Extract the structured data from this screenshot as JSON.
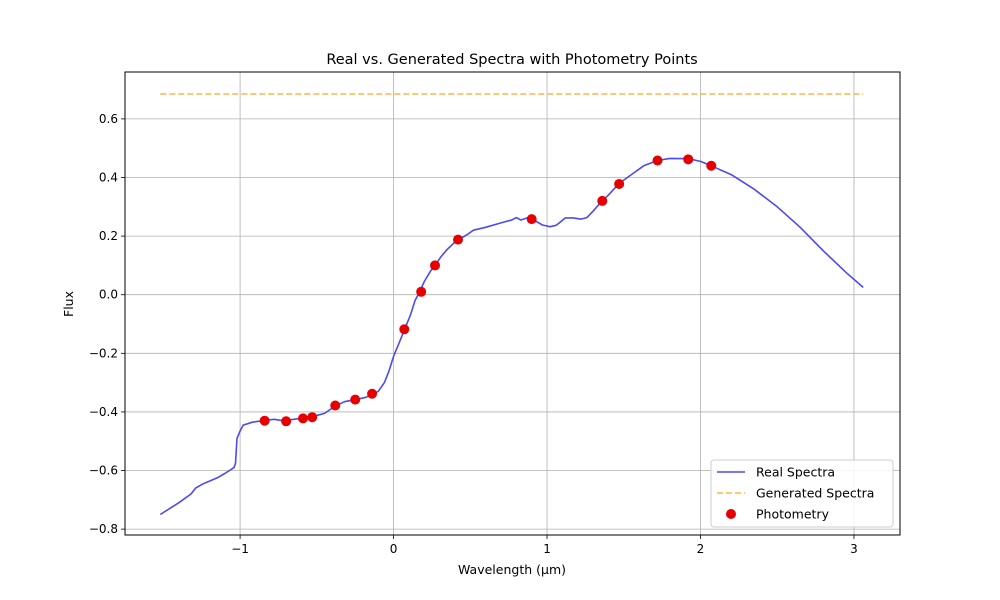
{
  "chart_data": {
    "type": "line",
    "title": "Real vs. Generated Spectra with Photometry Points",
    "xlabel": "Wavelength (µm)",
    "ylabel": "Flux",
    "xlim": [
      -1.75,
      3.3
    ],
    "ylim": [
      -0.82,
      0.76
    ],
    "x_ticks": [
      -1,
      0,
      1,
      2,
      3
    ],
    "x_tick_labels": [
      "−1",
      "0",
      "1",
      "2",
      "3"
    ],
    "y_ticks": [
      -0.8,
      -0.6,
      -0.4,
      -0.2,
      0.0,
      0.2,
      0.4,
      0.6
    ],
    "y_tick_labels": [
      "−0.8",
      "−0.6",
      "−0.4",
      "−0.2",
      "0.0",
      "0.2",
      "0.4",
      "0.6"
    ],
    "grid": true,
    "legend_position": "lower-right",
    "series": [
      {
        "name": "Real Spectra",
        "kind": "line",
        "color": "#4b4bf0",
        "points": [
          [
            -1.52,
            -0.75
          ],
          [
            -1.4,
            -0.71
          ],
          [
            -1.32,
            -0.68
          ],
          [
            -1.29,
            -0.66
          ],
          [
            -1.24,
            -0.645
          ],
          [
            -1.15,
            -0.625
          ],
          [
            -1.1,
            -0.61
          ],
          [
            -1.04,
            -0.59
          ],
          [
            -1.03,
            -0.575
          ],
          [
            -1.02,
            -0.49
          ],
          [
            -1.0,
            -0.465
          ],
          [
            -0.98,
            -0.445
          ],
          [
            -0.92,
            -0.435
          ],
          [
            -0.85,
            -0.43
          ],
          [
            -0.78,
            -0.425
          ],
          [
            -0.72,
            -0.43
          ],
          [
            -0.65,
            -0.425
          ],
          [
            -0.58,
            -0.42
          ],
          [
            -0.52,
            -0.415
          ],
          [
            -0.45,
            -0.405
          ],
          [
            -0.38,
            -0.38
          ],
          [
            -0.32,
            -0.365
          ],
          [
            -0.27,
            -0.36
          ],
          [
            -0.22,
            -0.355
          ],
          [
            -0.18,
            -0.35
          ],
          [
            -0.14,
            -0.34
          ],
          [
            -0.1,
            -0.33
          ],
          [
            -0.06,
            -0.3
          ],
          [
            -0.03,
            -0.26
          ],
          [
            0.0,
            -0.21
          ],
          [
            0.04,
            -0.16
          ],
          [
            0.07,
            -0.12
          ],
          [
            0.11,
            -0.07
          ],
          [
            0.14,
            -0.02
          ],
          [
            0.17,
            0.01
          ],
          [
            0.2,
            0.045
          ],
          [
            0.24,
            0.08
          ],
          [
            0.27,
            0.1
          ],
          [
            0.31,
            0.13
          ],
          [
            0.35,
            0.155
          ],
          [
            0.4,
            0.18
          ],
          [
            0.43,
            0.19
          ],
          [
            0.48,
            0.205
          ],
          [
            0.52,
            0.22
          ],
          [
            0.6,
            0.23
          ],
          [
            0.7,
            0.245
          ],
          [
            0.77,
            0.255
          ],
          [
            0.8,
            0.263
          ],
          [
            0.83,
            0.255
          ],
          [
            0.87,
            0.262
          ],
          [
            0.9,
            0.26
          ],
          [
            0.93,
            0.25
          ],
          [
            0.97,
            0.238
          ],
          [
            1.02,
            0.232
          ],
          [
            1.06,
            0.237
          ],
          [
            1.08,
            0.245
          ],
          [
            1.12,
            0.262
          ],
          [
            1.17,
            0.262
          ],
          [
            1.22,
            0.258
          ],
          [
            1.26,
            0.263
          ],
          [
            1.3,
            0.285
          ],
          [
            1.35,
            0.315
          ],
          [
            1.4,
            0.34
          ],
          [
            1.47,
            0.38
          ],
          [
            1.55,
            0.41
          ],
          [
            1.63,
            0.44
          ],
          [
            1.72,
            0.458
          ],
          [
            1.8,
            0.465
          ],
          [
            1.92,
            0.464
          ],
          [
            2.0,
            0.455
          ],
          [
            2.07,
            0.44
          ],
          [
            2.2,
            0.41
          ],
          [
            2.35,
            0.36
          ],
          [
            2.5,
            0.3
          ],
          [
            2.65,
            0.23
          ],
          [
            2.8,
            0.15
          ],
          [
            2.95,
            0.075
          ],
          [
            3.06,
            0.025
          ]
        ]
      },
      {
        "name": "Generated Spectra",
        "kind": "dashed-line",
        "color": "#ffb347",
        "points": [
          [
            -1.52,
            0.685
          ],
          [
            3.06,
            0.685
          ]
        ]
      },
      {
        "name": "Photometry",
        "kind": "scatter",
        "color": "#e60000",
        "points": [
          [
            -0.84,
            -0.43
          ],
          [
            -0.7,
            -0.432
          ],
          [
            -0.59,
            -0.422
          ],
          [
            -0.53,
            -0.418
          ],
          [
            -0.38,
            -0.378
          ],
          [
            -0.25,
            -0.358
          ],
          [
            -0.14,
            -0.338
          ],
          [
            0.07,
            -0.118
          ],
          [
            0.18,
            0.01
          ],
          [
            0.27,
            0.1
          ],
          [
            0.42,
            0.188
          ],
          [
            0.9,
            0.258
          ],
          [
            1.36,
            0.32
          ],
          [
            1.47,
            0.378
          ],
          [
            1.72,
            0.458
          ],
          [
            1.92,
            0.462
          ],
          [
            2.07,
            0.44
          ]
        ]
      }
    ]
  }
}
